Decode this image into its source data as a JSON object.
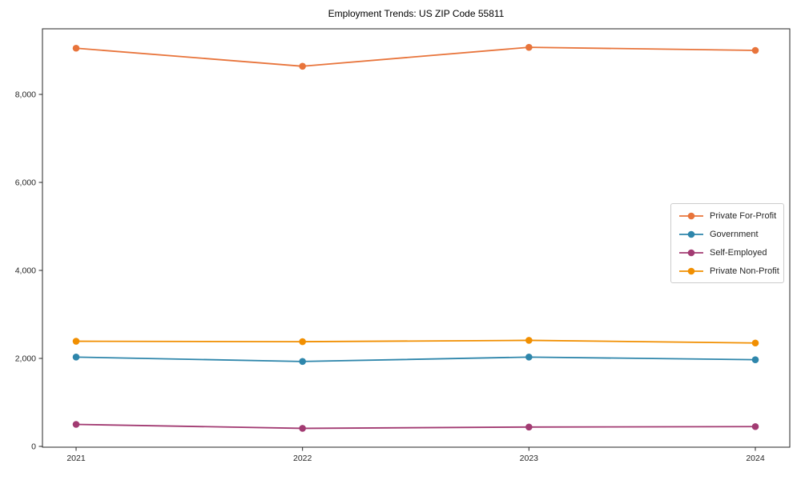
{
  "title": "Employment Trends: US ZIP Code 55811",
  "chart_data": {
    "type": "line",
    "title": "Employment Trends: US ZIP Code 55811",
    "categories": [
      "2021",
      "2022",
      "2023",
      "2024"
    ],
    "series": [
      {
        "name": "Private For-Profit",
        "color": "#E8743B",
        "values": [
          9050,
          8640,
          9070,
          9000
        ]
      },
      {
        "name": "Government",
        "color": "#2E86AB",
        "values": [
          2030,
          1930,
          2030,
          1970
        ]
      },
      {
        "name": "Self-Employed",
        "color": "#A23B72",
        "values": [
          500,
          410,
          440,
          450
        ]
      },
      {
        "name": "Private Non-Profit",
        "color": "#F18F01",
        "values": [
          2390,
          2380,
          2410,
          2350
        ]
      }
    ],
    "yticks": [
      0,
      2000,
      4000,
      6000,
      8000
    ],
    "ytick_labels": [
      "0",
      "2,000",
      "4,000",
      "6,000",
      "8,000"
    ],
    "ylim": [
      0,
      9500
    ],
    "xlabel": "",
    "ylabel": "",
    "grid": false,
    "marker": "circle",
    "legend_position": "right-middle",
    "axis_color": "#262626"
  }
}
